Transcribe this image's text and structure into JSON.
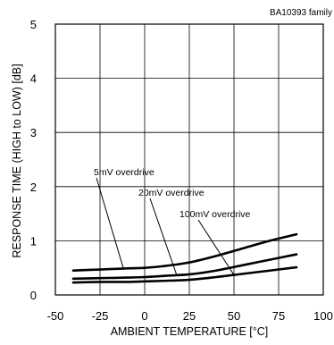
{
  "chart_data": {
    "type": "line",
    "title": "",
    "family_label": "BA10393 family",
    "xlabel": "AMBIENT TEMPERATURE [°C]",
    "ylabel": "RESPONSE TIME (HIGH to LOW) [dB]",
    "xlim": [
      -50,
      100
    ],
    "ylim": [
      0,
      5
    ],
    "xticks": [
      "-50",
      "-25",
      "0",
      "25",
      "50",
      "75",
      "100"
    ],
    "yticks": [
      "0",
      "1",
      "2",
      "3",
      "4",
      "5"
    ],
    "grid": true,
    "series": [
      {
        "name": "5mV overdrive",
        "x": [
          -40,
          -25,
          -10,
          0,
          10,
          25,
          40,
          55,
          70,
          85
        ],
        "values": [
          0.45,
          0.47,
          0.49,
          0.5,
          0.53,
          0.6,
          0.72,
          0.86,
          1.0,
          1.12
        ]
      },
      {
        "name": "20mV overdrive",
        "x": [
          -40,
          -25,
          -10,
          0,
          10,
          25,
          40,
          55,
          70,
          85
        ],
        "values": [
          0.3,
          0.31,
          0.32,
          0.33,
          0.35,
          0.38,
          0.45,
          0.55,
          0.65,
          0.75
        ]
      },
      {
        "name": "100mV overdrive",
        "x": [
          -40,
          -25,
          -10,
          0,
          10,
          25,
          40,
          55,
          70,
          85
        ],
        "values": [
          0.23,
          0.24,
          0.24,
          0.25,
          0.26,
          0.28,
          0.33,
          0.39,
          0.45,
          0.51
        ]
      }
    ],
    "annotations": [
      {
        "text": "5mV overdrive",
        "target_series": 0
      },
      {
        "text": "20mV overdrive",
        "target_series": 1
      },
      {
        "text": "100mV overdrive",
        "target_series": 2
      }
    ]
  }
}
